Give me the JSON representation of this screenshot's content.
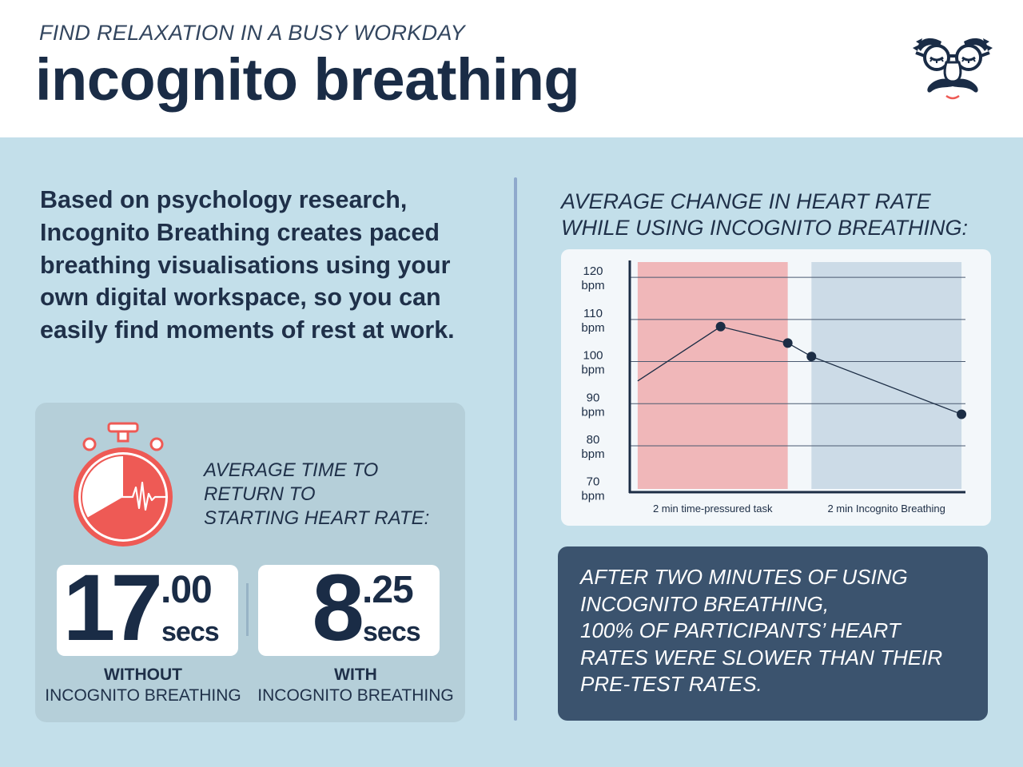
{
  "header": {
    "kicker": "FIND RELAXATION IN  A BUSY WORKDAY",
    "title": "incognito breathing",
    "logo_icon": "disguise-face-logo-icon"
  },
  "intro": {
    "text": "Based on psychology research, Incognito Breathing creates paced breathing visualisations using your own digital workspace, so you can easily find moments of rest at work."
  },
  "stats": {
    "icon": "stopwatch-heartbeat-icon",
    "label_lines": [
      "AVERAGE TIME TO",
      "RETURN TO",
      "STARTING HEART RATE:"
    ],
    "without": {
      "int": "17",
      "dec": ".00",
      "unit": "secs",
      "caption_strong": "WITHOUT",
      "caption_light": "INCOGNITO BREATHING"
    },
    "with": {
      "int": "8",
      "dec": ".25",
      "unit": "secs",
      "caption_strong": "WITH",
      "caption_light": "INCOGNITO BREATHING"
    }
  },
  "chart_data": {
    "type": "line",
    "title": "AVERAGE CHANGE IN HEART RATE WHILE USING INCOGNITO BREATHING:",
    "title_lines": [
      "AVERAGE CHANGE IN HEART RATE",
      "WHILE USING INCOGNITO BREATHING:"
    ],
    "yticks": [
      {
        "value": 120,
        "label": "120",
        "unit": "bpm"
      },
      {
        "value": 110,
        "label": "110",
        "unit": "bpm"
      },
      {
        "value": 100,
        "label": "100",
        "unit": "bpm"
      },
      {
        "value": 90,
        "label": "90",
        "unit": "bpm"
      },
      {
        "value": 80,
        "label": "80",
        "unit": "bpm"
      },
      {
        "value": 70,
        "label": "70",
        "unit": "bpm"
      }
    ],
    "ylim": [
      69,
      124
    ],
    "xlim": [
      0,
      4.25
    ],
    "grid": true,
    "phases": [
      {
        "label": "2 min time-pressured task",
        "start": 0.1,
        "end": 2.0,
        "color": "#f0b7b9"
      },
      {
        "label": "2 min Incognito Breathing",
        "start": 2.3,
        "end": 4.2,
        "color": "#ccdbe7"
      }
    ],
    "series": [
      {
        "points": [
          {
            "x": 0.1,
            "y": 95.4,
            "marker": false
          },
          {
            "x": 1.15,
            "y": 108.3,
            "marker": true
          },
          {
            "x": 2.0,
            "y": 104.4,
            "marker": true
          },
          {
            "x": 2.3,
            "y": 101.2,
            "marker": true
          },
          {
            "x": 4.2,
            "y": 87.5,
            "marker": true
          }
        ],
        "color": "#1c2d45"
      }
    ]
  },
  "finding": {
    "lines": [
      "AFTER TWO MINUTES OF USING",
      "INCOGNITO BREATHING,",
      "100% OF PARTICIPANTS’ HEART",
      "RATES WERE SLOWER THAN THEIR",
      "PRE-TEST RATES."
    ]
  },
  "colors": {
    "background": "#c3dfea",
    "navy": "#1a2c46",
    "panel": "#b5cfd9",
    "finding_bg": "#3b536e",
    "accent_red": "#ee5a55"
  }
}
